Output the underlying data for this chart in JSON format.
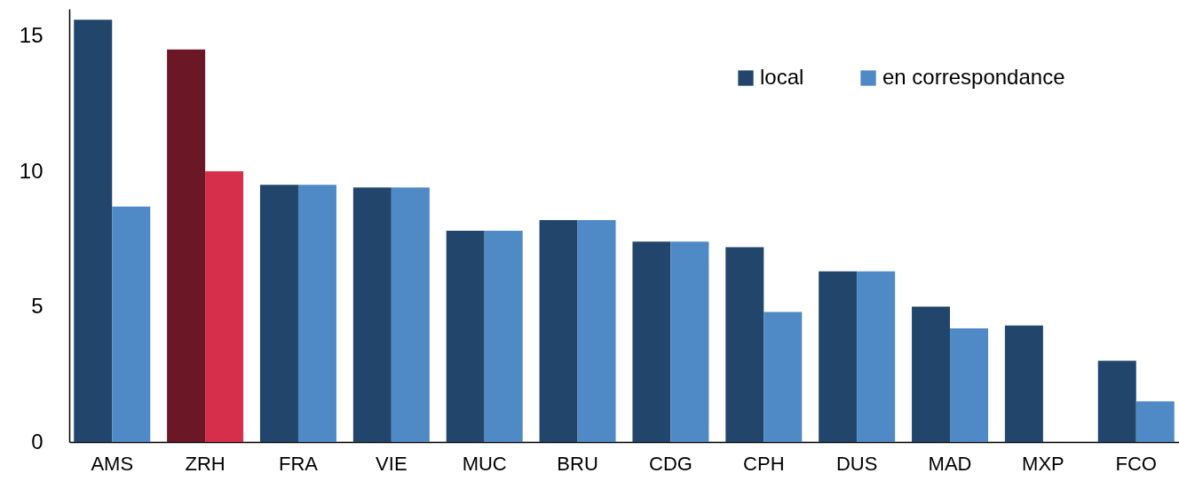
{
  "chart_data": {
    "type": "bar",
    "categories": [
      "AMS",
      "ZRH",
      "FRA",
      "VIE",
      "MUC",
      "BRU",
      "CDG",
      "CPH",
      "DUS",
      "MAD",
      "MXP",
      "FCO"
    ],
    "series": [
      {
        "name": "local",
        "color": "#22466b",
        "colors": [
          "#22466b",
          "#6b1726",
          "#22466b",
          "#22466b",
          "#22466b",
          "#22466b",
          "#22466b",
          "#22466b",
          "#22466b",
          "#22466b",
          "#22466b",
          "#22466b"
        ],
        "values": [
          15.6,
          14.5,
          9.5,
          9.4,
          7.8,
          8.2,
          7.4,
          7.2,
          6.3,
          5.0,
          4.3,
          3.0
        ]
      },
      {
        "name": "en correspondance",
        "color": "#4f8ac6",
        "colors": [
          "#4f8ac6",
          "#d62f4b",
          "#4f8ac6",
          "#4f8ac6",
          "#4f8ac6",
          "#4f8ac6",
          "#4f8ac6",
          "#4f8ac6",
          "#4f8ac6",
          "#4f8ac6",
          null,
          "#4f8ac6"
        ],
        "values": [
          8.7,
          10.0,
          9.5,
          9.4,
          7.8,
          8.2,
          7.4,
          4.8,
          6.3,
          4.2,
          null,
          1.5
        ]
      }
    ],
    "ylim": [
      0,
      16
    ],
    "yticks": [
      0,
      5,
      10,
      15
    ],
    "grid": false,
    "legend": "top right"
  }
}
